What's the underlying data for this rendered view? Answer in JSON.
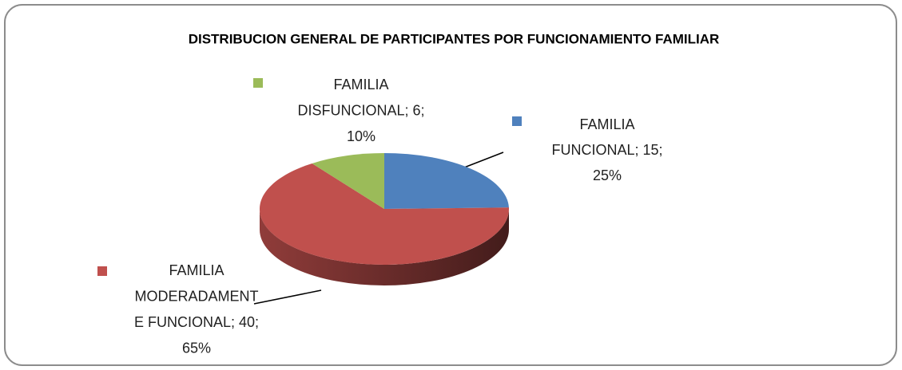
{
  "chart_data": {
    "type": "pie",
    "title": "DISTRIBUCION GENERAL DE PARTICIPANTES POR FUNCIONAMIENTO FAMILIAR",
    "values": [
      15,
      40,
      6
    ],
    "value_labels": [
      [
        "FAMILIA",
        "FUNCIONAL; 15;",
        "25%"
      ],
      [
        "FAMILIA",
        "MODERADAMENT",
        "E FUNCIONAL; 40;",
        "65%"
      ],
      [
        "FAMILIA",
        "DISFUNCIONAL; 6;",
        "10%"
      ]
    ],
    "colors": [
      "#4f81bd",
      "#c0504d",
      "#9bbb59"
    ]
  }
}
